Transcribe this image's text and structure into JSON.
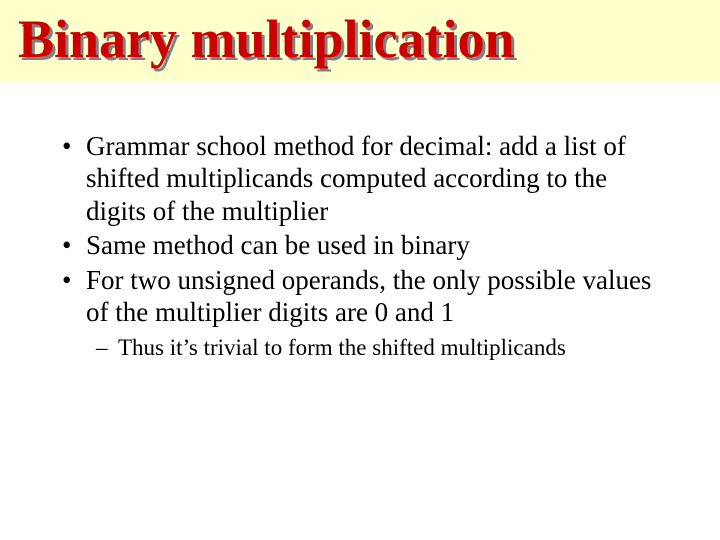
{
  "title": "Binary multiplication",
  "title_color": "#cc0000",
  "title_shadow_color": "#808080",
  "title_banner_bg": "#ffffcc",
  "title_fontsize": 54,
  "body_fontsize": 27,
  "sub_fontsize": 23,
  "page_bg": "#ffffff",
  "text_color": "#000000",
  "bullets": [
    "Grammar school method for decimal: add a list of shifted multiplicands computed according to the digits of the multiplier",
    "Same method can be used in binary",
    "For two unsigned operands, the only possible values of the multiplier digits are 0 and 1"
  ],
  "sub_bullets": [
    "Thus it’s trivial to form the shifted multiplicands"
  ]
}
